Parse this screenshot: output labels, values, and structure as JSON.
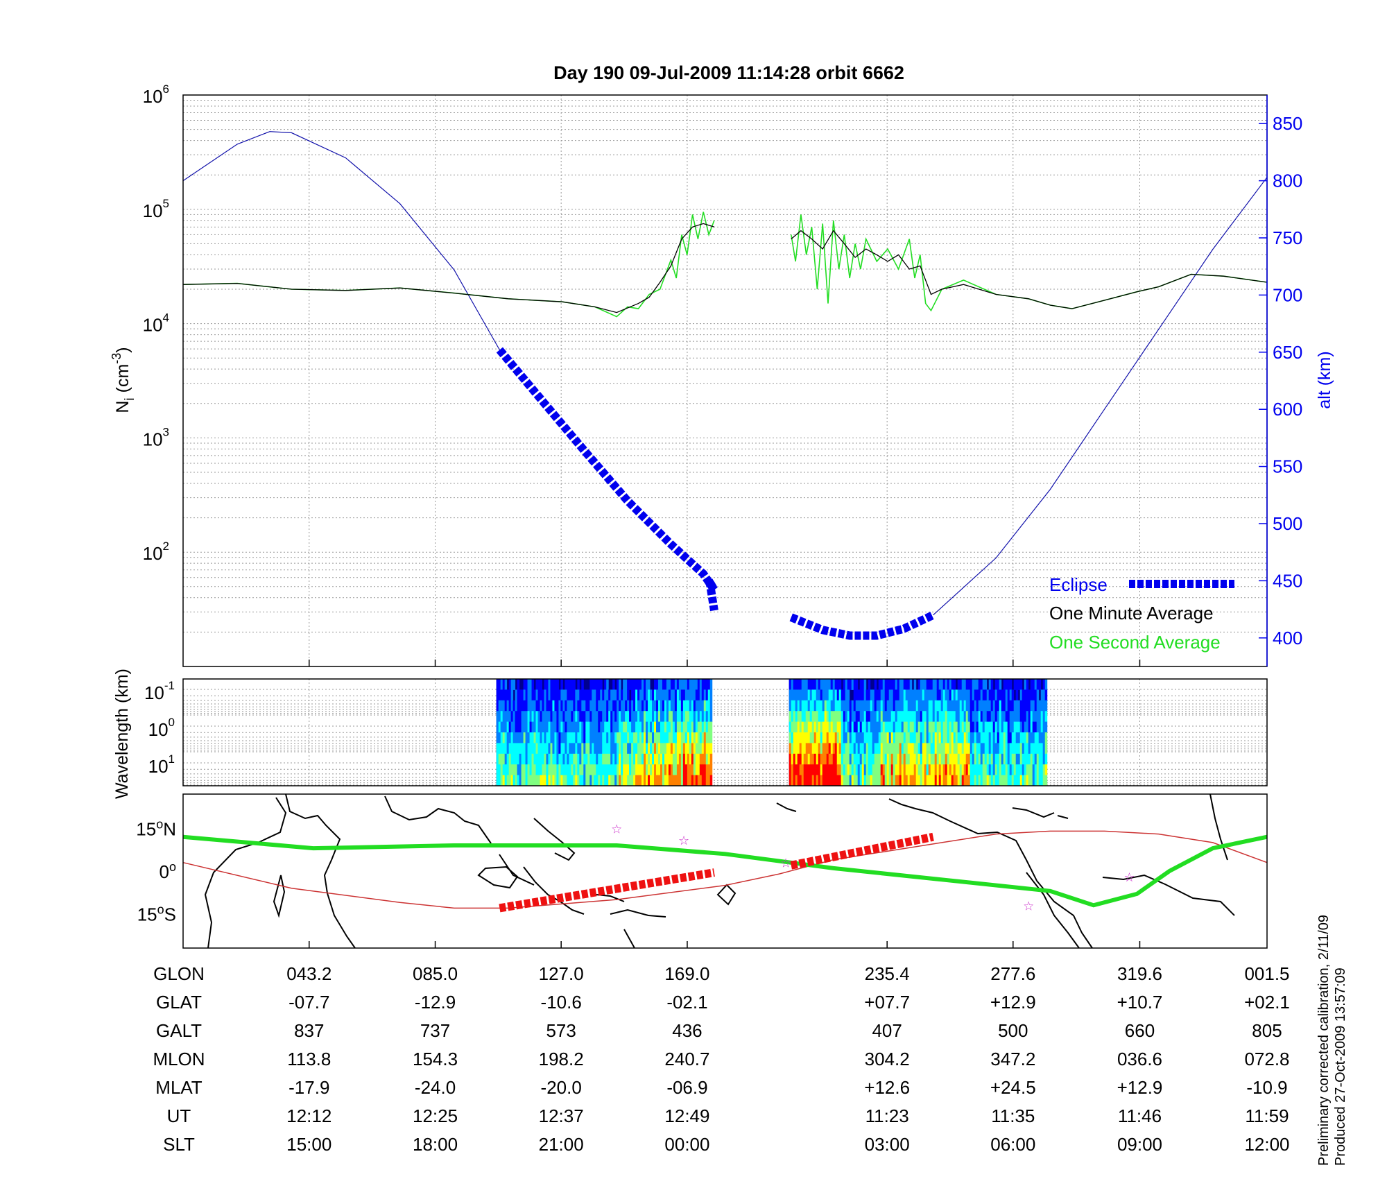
{
  "title": "Day 190  09-Jul-2009 11:14:28   orbit 6662",
  "chart_data": [
    {
      "type": "line",
      "panel": "density-altitude",
      "ylabel_left": {
        "main": "N",
        "sub": "i",
        "unit_open": " (cm",
        "unit_sup": "-3",
        "unit_close": ")"
      },
      "ylabel_right": "alt (km)",
      "y_left_scale": "log",
      "y_left_lim": [
        10,
        1000000
      ],
      "y_left_ticks": [
        {
          "value": 100,
          "base": "10",
          "exp": "2"
        },
        {
          "value": 1000,
          "base": "10",
          "exp": "3"
        },
        {
          "value": 10000,
          "base": "10",
          "exp": "4"
        },
        {
          "value": 100000,
          "base": "10",
          "exp": "5"
        },
        {
          "value": 1000000,
          "base": "10",
          "exp": "6"
        }
      ],
      "y_right_lim": [
        375,
        875
      ],
      "y_right_ticks": [
        "400",
        "450",
        "500",
        "550",
        "600",
        "650",
        "700",
        "750",
        "800",
        "850"
      ],
      "grid": true,
      "legend_position": "bottom-right",
      "series": [
        {
          "name": "Eclipse",
          "color": "#0000ee",
          "axis": "right",
          "segments": [
            [
              [
                0.292,
                652
              ],
              [
                0.33,
                609
              ],
              [
                0.37,
                564
              ],
              [
                0.41,
                520
              ],
              [
                0.45,
                482
              ],
              [
                0.48,
                456
              ],
              [
                0.49,
                442
              ],
              [
                0.487,
                447
              ],
              [
                0.485,
                450
              ],
              [
                0.488,
                445
              ],
              [
                0.486,
                448
              ],
              [
                0.49,
                424
              ]
            ],
            [
              [
                0.561,
                418
              ],
              [
                0.59,
                407
              ],
              [
                0.615,
                402
              ],
              [
                0.64,
                402
              ],
              [
                0.665,
                408
              ],
              [
                0.692,
                420
              ]
            ]
          ]
        },
        {
          "name": "One Minute Average",
          "color": "#000000",
          "axis": "left",
          "segments": [
            [
              [
                0.0,
                22000
              ],
              [
                0.05,
                22500
              ],
              [
                0.1,
                20000
              ],
              [
                0.15,
                19500
              ],
              [
                0.2,
                20500
              ],
              [
                0.25,
                18500
              ],
              [
                0.3,
                16500
              ],
              [
                0.35,
                15500
              ],
              [
                0.38,
                14000
              ],
              [
                0.4,
                12500
              ],
              [
                0.42,
                15000
              ],
              [
                0.43,
                17000
              ],
              [
                0.44,
                23000
              ],
              [
                0.45,
                32000
              ],
              [
                0.46,
                55000
              ],
              [
                0.47,
                70000
              ],
              [
                0.48,
                75000
              ],
              [
                0.49,
                70000
              ]
            ],
            [
              [
                0.561,
                55000
              ],
              [
                0.57,
                65000
              ],
              [
                0.58,
                55000
              ],
              [
                0.59,
                45000
              ],
              [
                0.6,
                65000
              ],
              [
                0.61,
                50000
              ],
              [
                0.62,
                38000
              ],
              [
                0.63,
                45000
              ],
              [
                0.64,
                40000
              ],
              [
                0.65,
                35000
              ],
              [
                0.66,
                40000
              ],
              [
                0.67,
                30000
              ],
              [
                0.68,
                32000
              ],
              [
                0.69,
                18000
              ],
              [
                0.7,
                20000
              ],
              [
                0.72,
                22000
              ],
              [
                0.75,
                18000
              ],
              [
                0.78,
                16500
              ],
              [
                0.8,
                14500
              ],
              [
                0.82,
                13500
              ],
              [
                0.85,
                16000
              ],
              [
                0.88,
                19000
              ],
              [
                0.9,
                21000
              ],
              [
                0.93,
                27000
              ],
              [
                0.96,
                26000
              ],
              [
                1.0,
                23000
              ]
            ]
          ]
        },
        {
          "name": "One Second Average",
          "color": "#22dd22",
          "axis": "left",
          "segments": [
            [
              [
                0.0,
                22000
              ],
              [
                0.05,
                22500
              ],
              [
                0.1,
                20000
              ],
              [
                0.15,
                19500
              ],
              [
                0.2,
                20500
              ],
              [
                0.25,
                18500
              ],
              [
                0.3,
                16500
              ],
              [
                0.35,
                15500
              ],
              [
                0.38,
                14000
              ],
              [
                0.4,
                11500
              ],
              [
                0.41,
                14000
              ],
              [
                0.42,
                13500
              ],
              [
                0.43,
                18000
              ],
              [
                0.44,
                20000
              ],
              [
                0.45,
                36000
              ],
              [
                0.455,
                25000
              ],
              [
                0.46,
                60000
              ],
              [
                0.465,
                40000
              ],
              [
                0.47,
                90000
              ],
              [
                0.475,
                55000
              ],
              [
                0.48,
                95000
              ],
              [
                0.485,
                60000
              ],
              [
                0.49,
                80000
              ]
            ],
            [
              [
                0.561,
                60000
              ],
              [
                0.565,
                35000
              ],
              [
                0.57,
                90000
              ],
              [
                0.575,
                40000
              ],
              [
                0.58,
                70000
              ],
              [
                0.585,
                20000
              ],
              [
                0.59,
                75000
              ],
              [
                0.595,
                15000
              ],
              [
                0.6,
                80000
              ],
              [
                0.605,
                30000
              ],
              [
                0.61,
                60000
              ],
              [
                0.615,
                25000
              ],
              [
                0.62,
                50000
              ],
              [
                0.625,
                30000
              ],
              [
                0.63,
                55000
              ],
              [
                0.64,
                35000
              ],
              [
                0.65,
                45000
              ],
              [
                0.66,
                30000
              ],
              [
                0.67,
                55000
              ],
              [
                0.675,
                25000
              ],
              [
                0.68,
                40000
              ],
              [
                0.685,
                15000
              ],
              [
                0.69,
                13000
              ],
              [
                0.7,
                20000
              ],
              [
                0.72,
                24000
              ],
              [
                0.75,
                18000
              ],
              [
                0.78,
                16500
              ],
              [
                0.8,
                14500
              ],
              [
                0.82,
                13500
              ],
              [
                0.85,
                16000
              ],
              [
                0.88,
                19000
              ],
              [
                0.9,
                21000
              ],
              [
                0.93,
                27000
              ],
              [
                0.96,
                26000
              ],
              [
                1.0,
                23000
              ]
            ]
          ]
        },
        {
          "name": "",
          "color": "#1010aa",
          "axis": "right",
          "segments": [
            [
              [
                0.0,
                800
              ],
              [
                0.05,
                832
              ],
              [
                0.08,
                843
              ],
              [
                0.1,
                842
              ],
              [
                0.15,
                820
              ],
              [
                0.2,
                780
              ],
              [
                0.25,
                722
              ],
              [
                0.292,
                652
              ]
            ],
            [
              [
                0.692,
                420
              ],
              [
                0.75,
                470
              ],
              [
                0.8,
                530
              ],
              [
                0.85,
                600
              ],
              [
                0.9,
                670
              ],
              [
                0.95,
                740
              ],
              [
                1.0,
                803
              ]
            ]
          ]
        }
      ]
    },
    {
      "type": "heatmap",
      "panel": "wavelength-spectrogram",
      "ylabel": "Wavelength (km)",
      "y_scale": "log",
      "y_ticks": [
        {
          "base": "10",
          "exp": "-1"
        },
        {
          "base": "10",
          "exp": "0"
        },
        {
          "base": "10",
          "exp": "1"
        }
      ],
      "blocks": [
        [
          0.289,
          0.488
        ],
        [
          0.559,
          0.797
        ]
      ],
      "colormap": [
        "#00008f",
        "#0000ff",
        "#0080ff",
        "#00ffff",
        "#80ff80",
        "#ffff00",
        "#ff8000",
        "#ff0000"
      ]
    },
    {
      "type": "map",
      "panel": "ground-track",
      "y_ticks": [
        {
          "value": 15,
          "label": "15",
          "hemi": "N"
        },
        {
          "value": 0,
          "label": "0",
          "hemi": ""
        },
        {
          "value": -15,
          "label": "15",
          "hemi": "S"
        }
      ],
      "y_lim": [
        -27,
        27
      ],
      "tracks": [
        {
          "name": "",
          "color": "#22dd22",
          "points": [
            [
              0.0,
              12
            ],
            [
              0.12,
              8
            ],
            [
              0.25,
              9
            ],
            [
              0.4,
              9
            ],
            [
              0.5,
              6
            ],
            [
              0.6,
              1
            ],
            [
              0.7,
              -3
            ],
            [
              0.8,
              -7
            ],
            [
              0.84,
              -12
            ],
            [
              0.88,
              -8
            ],
            [
              0.91,
              0
            ],
            [
              0.95,
              8
            ],
            [
              1.0,
              12
            ]
          ]
        },
        {
          "name": "",
          "color": "#cc3333",
          "points": [
            [
              0.0,
              3
            ],
            [
              0.1,
              -6
            ],
            [
              0.2,
              -11
            ],
            [
              0.25,
              -13
            ],
            [
              0.3,
              -13
            ],
            [
              0.4,
              -10
            ],
            [
              0.5,
              -5
            ],
            [
              0.55,
              -1
            ],
            [
              0.6,
              4
            ],
            [
              0.7,
              10
            ],
            [
              0.75,
              13
            ],
            [
              0.8,
              14
            ],
            [
              0.85,
              14
            ],
            [
              0.9,
              13
            ],
            [
              0.95,
              10
            ],
            [
              1.0,
              3
            ]
          ]
        }
      ],
      "eclipse_segments": [
        [
          [
            0.292,
            -13
          ],
          [
            0.49,
            -0.5
          ]
        ],
        [
          [
            0.561,
            2
          ],
          [
            0.692,
            12
          ]
        ]
      ],
      "stars": [
        [
          0.4,
          15
        ],
        [
          0.462,
          11
        ],
        [
          0.556,
          3
        ],
        [
          0.78,
          -12
        ],
        [
          0.873,
          -2
        ]
      ]
    }
  ],
  "table": {
    "row_labels": [
      "GLON",
      "GLAT",
      "GALT",
      "MLON",
      "MLAT",
      "UT",
      "SLT"
    ],
    "columns": [
      {
        "pos": 0.1163,
        "values": [
          "043.2",
          "-07.7",
          "837",
          "113.8",
          "-17.9",
          "12:12",
          "15:00"
        ]
      },
      {
        "pos": 0.2326,
        "values": [
          "085.0",
          "-12.9",
          "737",
          "154.3",
          "-24.0",
          "12:25",
          "18:00"
        ]
      },
      {
        "pos": 0.3488,
        "values": [
          "127.0",
          "-10.6",
          "573",
          "198.2",
          "-20.0",
          "12:37",
          "21:00"
        ]
      },
      {
        "pos": 0.4651,
        "values": [
          "169.0",
          "-02.1",
          "436",
          "240.7",
          "-06.9",
          "12:49",
          "00:00"
        ]
      },
      {
        "pos": 0.6495,
        "values": [
          "235.4",
          "+07.7",
          "407",
          "304.2",
          "+12.6",
          "11:23",
          "03:00"
        ]
      },
      {
        "pos": 0.7657,
        "values": [
          "277.6",
          "+12.9",
          "500",
          "347.2",
          "+24.5",
          "11:35",
          "06:00"
        ]
      },
      {
        "pos": 0.8826,
        "values": [
          "319.6",
          "+10.7",
          "660",
          "036.6",
          "+12.9",
          "11:46",
          "09:00"
        ]
      },
      {
        "pos": 1.0,
        "values": [
          "001.5",
          "+02.1",
          "805",
          "072.8",
          "-10.9",
          "11:59",
          "12:00"
        ]
      }
    ]
  },
  "credits": {
    "line1": "Preliminary corrected calibration, 2/11/09",
    "line2": "Produced 27-Oct-2009 13:57:09"
  }
}
